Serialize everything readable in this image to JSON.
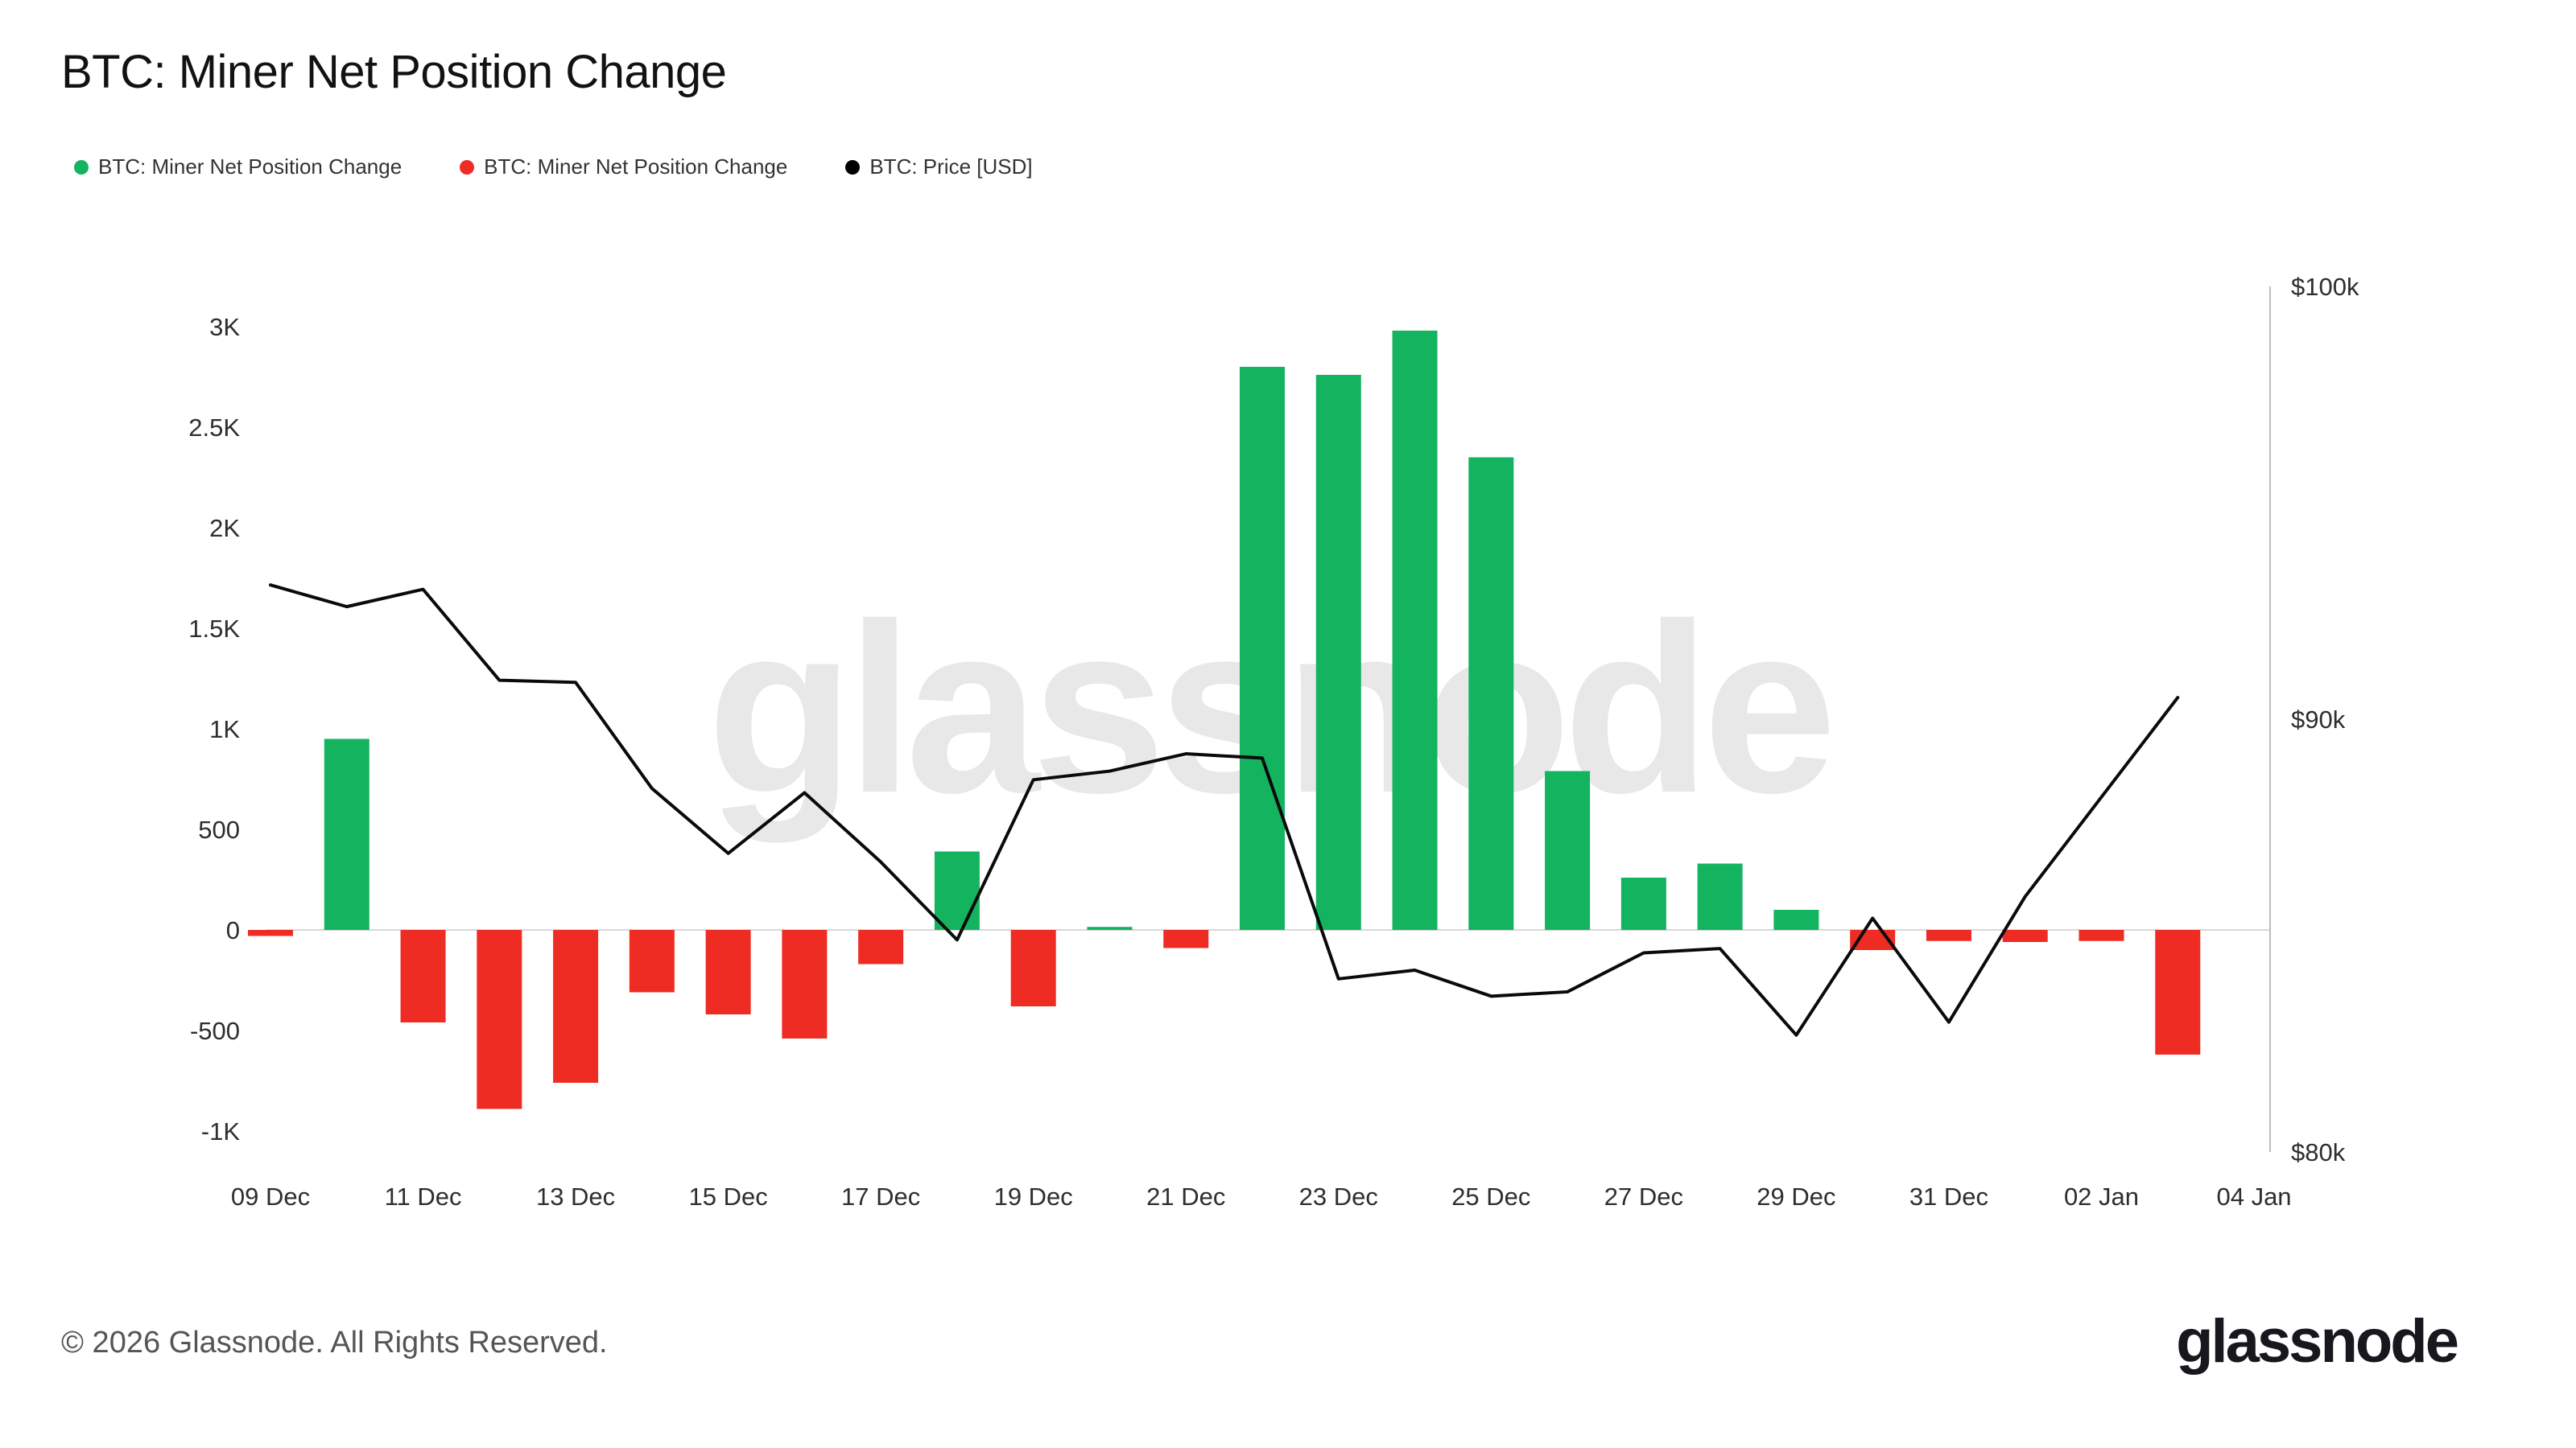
{
  "header": {
    "title": "BTC: Miner Net Position Change"
  },
  "legend": [
    {
      "label": "BTC: Miner Net Position Change",
      "color": "#14b35f"
    },
    {
      "label": "BTC: Miner Net Position Change",
      "color": "#ee2c24"
    },
    {
      "label": "BTC: Price [USD]",
      "color": "#000000"
    }
  ],
  "watermark": "glassnode",
  "footer": {
    "copyright": "© 2026 Glassnode. All Rights Reserved.",
    "logo": "glassnode"
  },
  "chart_data": {
    "type": "bar",
    "title": "BTC: Miner Net Position Change",
    "categories": [
      "09 Dec",
      "10 Dec",
      "11 Dec",
      "12 Dec",
      "13 Dec",
      "14 Dec",
      "15 Dec",
      "16 Dec",
      "17 Dec",
      "18 Dec",
      "19 Dec",
      "20 Dec",
      "21 Dec",
      "22 Dec",
      "23 Dec",
      "24 Dec",
      "25 Dec",
      "26 Dec",
      "27 Dec",
      "28 Dec",
      "29 Dec",
      "30 Dec",
      "31 Dec",
      "01 Jan",
      "02 Jan",
      "03 Jan"
    ],
    "series": [
      {
        "name": "BTC: Miner Net Position Change",
        "type": "bar",
        "axis": "left",
        "unit": "BTC",
        "positive_color": "#14b35f",
        "negative_color": "#ee2c24",
        "values": [
          -30,
          950,
          -460,
          -890,
          -760,
          -310,
          -420,
          -540,
          -170,
          390,
          -380,
          15,
          -90,
          2800,
          2760,
          2980,
          2350,
          790,
          260,
          330,
          100,
          -100,
          -55,
          -60,
          -55,
          -620
        ]
      },
      {
        "name": "BTC: Price [USD]",
        "type": "line",
        "axis": "right",
        "unit": "USD (thousands)",
        "color": "#0a0a0a",
        "values_usd_k": [
          93.1,
          92.6,
          93.0,
          90.9,
          90.85,
          88.4,
          86.9,
          88.3,
          86.7,
          84.9,
          88.6,
          88.8,
          89.2,
          89.1,
          84.0,
          84.2,
          83.6,
          83.7,
          84.6,
          84.7,
          82.7,
          85.4,
          83.0,
          85.9,
          88.2,
          90.5
        ]
      }
    ],
    "left_axis": {
      "tick_values": [
        3000,
        2500,
        2000,
        1500,
        1000,
        500,
        0,
        -500,
        -1000
      ],
      "tick_labels": [
        "3K",
        "2.5K",
        "2K",
        "1.5K",
        "1K",
        "500",
        "0",
        "-500",
        "-1K"
      ]
    },
    "right_axis": {
      "tick_values": [
        100,
        90,
        80
      ],
      "tick_labels": [
        "$100k",
        "$90k",
        "$80k"
      ]
    },
    "x_tick_labels": [
      "09 Dec",
      "11 Dec",
      "13 Dec",
      "15 Dec",
      "17 Dec",
      "19 Dec",
      "21 Dec",
      "23 Dec",
      "25 Dec",
      "27 Dec",
      "29 Dec",
      "31 Dec",
      "02 Jan",
      "04 Jan"
    ],
    "grid": "zero-line-only",
    "legend_position": "top-left"
  }
}
